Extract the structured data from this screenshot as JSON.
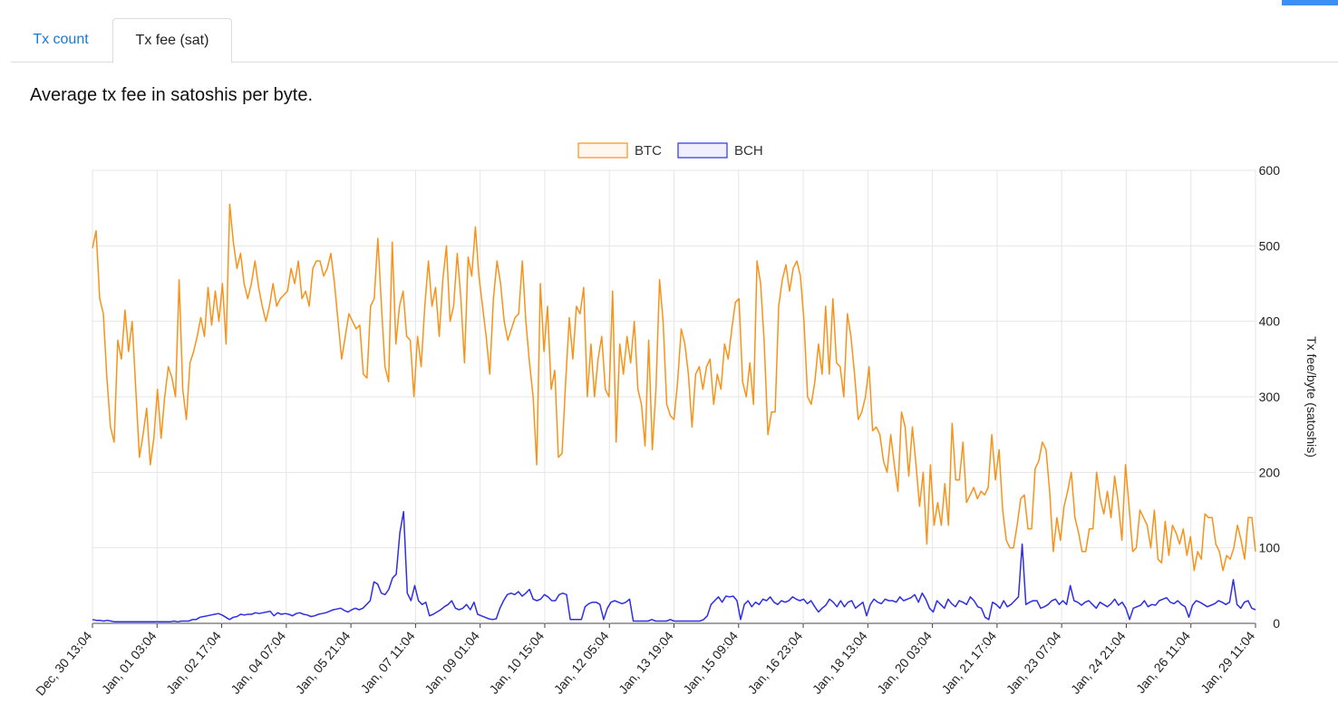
{
  "tabs": [
    {
      "label": "Tx count",
      "active": false
    },
    {
      "label": "Tx fee (sat)",
      "active": true
    }
  ],
  "description": "Average tx fee in satoshis per byte.",
  "colors": {
    "btc": "#f7931a",
    "bch": "#2e2ee6",
    "tab_link": "#1a78d8",
    "grid": "#e6e6e6"
  },
  "chart_data": {
    "type": "line",
    "title": "",
    "xlabel": "",
    "ylabel": "Tx fee/byte (satoshis)",
    "ylim": [
      0,
      600
    ],
    "yticks": [
      0,
      100,
      200,
      300,
      400,
      500,
      600
    ],
    "legend_position": "top-center",
    "x_start": "Dec, 30 13:04",
    "x_end": "Jan, 29 11:04",
    "x_tick_labels": [
      "Dec, 30 13:04",
      "Jan, 01 03:04",
      "Jan, 02 17:04",
      "Jan, 04 07:04",
      "Jan, 05 21:04",
      "Jan, 07 11:04",
      "Jan, 09 01:04",
      "Jan, 10 15:04",
      "Jan, 12 05:04",
      "Jan, 13 19:04",
      "Jan, 15 09:04",
      "Jan, 16 23:04",
      "Jan, 18 13:04",
      "Jan, 20 03:04",
      "Jan, 21 17:04",
      "Jan, 23 07:04",
      "Jan, 24 21:04",
      "Jan, 26 11:04",
      "Jan, 29 11:04"
    ],
    "series": [
      {
        "name": "BTC",
        "color": "#f7931a",
        "values": [
          497,
          520,
          430,
          410,
          325,
          260,
          240,
          375,
          350,
          415,
          360,
          400,
          310,
          220,
          250,
          285,
          210,
          245,
          310,
          245,
          300,
          340,
          325,
          300,
          455,
          310,
          270,
          345,
          360,
          380,
          405,
          380,
          445,
          395,
          440,
          400,
          450,
          370,
          555,
          505,
          470,
          490,
          450,
          430,
          450,
          480,
          445,
          420,
          400,
          420,
          450,
          420,
          430,
          435,
          440,
          470,
          450,
          480,
          430,
          440,
          420,
          470,
          480,
          480,
          460,
          470,
          490,
          450,
          400,
          350,
          380,
          410,
          400,
          390,
          395,
          330,
          325,
          420,
          430,
          510,
          420,
          340,
          320,
          505,
          370,
          420,
          440,
          380,
          375,
          300,
          380,
          340,
          420,
          480,
          420,
          445,
          380,
          455,
          500,
          400,
          420,
          490,
          430,
          345,
          485,
          460,
          525,
          460,
          420,
          380,
          330,
          430,
          480,
          450,
          400,
          375,
          390,
          405,
          410,
          480,
          400,
          345,
          300,
          210,
          450,
          360,
          420,
          310,
          335,
          220,
          225,
          320,
          405,
          350,
          420,
          410,
          445,
          300,
          370,
          300,
          350,
          380,
          310,
          300,
          440,
          240,
          370,
          330,
          380,
          345,
          400,
          310,
          290,
          235,
          375,
          230,
          310,
          455,
          400,
          290,
          275,
          270,
          320,
          390,
          370,
          330,
          260,
          330,
          340,
          310,
          340,
          350,
          290,
          330,
          310,
          370,
          350,
          390,
          425,
          430,
          320,
          300,
          345,
          290,
          480,
          450,
          370,
          250,
          280,
          280,
          420,
          455,
          475,
          440,
          470,
          480,
          460,
          400,
          300,
          290,
          320,
          370,
          330,
          420,
          330,
          430,
          345,
          340,
          300,
          410,
          380,
          330,
          270,
          280,
          300,
          340,
          255,
          260,
          250,
          215,
          200,
          250,
          210,
          175,
          280,
          260,
          195,
          260,
          210,
          155,
          200,
          105,
          210,
          130,
          160,
          130,
          185,
          130,
          265,
          190,
          190,
          240,
          160,
          170,
          180,
          165,
          175,
          170,
          180,
          250,
          190,
          230,
          150,
          110,
          100,
          100,
          130,
          165,
          170,
          125,
          125,
          205,
          215,
          240,
          230,
          175,
          95,
          140,
          110,
          155,
          175,
          200,
          140,
          120,
          95,
          95,
          125,
          125,
          200,
          165,
          145,
          175,
          140,
          195,
          160,
          110,
          210,
          155,
          95,
          100,
          150,
          140,
          130,
          100,
          150,
          85,
          80,
          135,
          90,
          130,
          120,
          105,
          125,
          90,
          115,
          70,
          95,
          85,
          145,
          140,
          140,
          105,
          95,
          70,
          90,
          85,
          100,
          130,
          110,
          85,
          140,
          140,
          95
        ]
      },
      {
        "name": "BCH",
        "color": "#2e2ee6",
        "values": [
          5,
          4,
          4,
          3,
          4,
          3,
          2,
          2,
          2,
          2,
          2,
          2,
          2,
          2,
          2,
          2,
          2,
          2,
          2,
          2,
          2,
          2,
          3,
          2,
          3,
          3,
          3,
          5,
          5,
          8,
          9,
          10,
          11,
          12,
          13,
          11,
          8,
          5,
          8,
          9,
          12,
          11,
          12,
          12,
          14,
          13,
          14,
          15,
          16,
          10,
          14,
          12,
          13,
          12,
          10,
          13,
          14,
          12,
          11,
          9,
          10,
          12,
          13,
          14,
          16,
          18,
          19,
          20,
          17,
          15,
          18,
          20,
          18,
          20,
          25,
          30,
          55,
          52,
          40,
          38,
          45,
          60,
          65,
          120,
          148,
          40,
          30,
          50,
          30,
          25,
          28,
          10,
          12,
          15,
          18,
          22,
          25,
          30,
          20,
          18,
          20,
          25,
          18,
          28,
          12,
          10,
          8,
          6,
          5,
          6,
          20,
          30,
          38,
          40,
          38,
          42,
          36,
          40,
          45,
          32,
          30,
          32,
          38,
          35,
          30,
          30,
          38,
          40,
          38,
          5,
          5,
          5,
          5,
          22,
          26,
          28,
          28,
          25,
          5,
          20,
          28,
          30,
          28,
          26,
          28,
          32,
          3,
          3,
          3,
          3,
          3,
          5,
          3,
          3,
          3,
          3,
          5,
          3,
          3,
          3,
          3,
          3,
          3,
          3,
          3,
          5,
          10,
          25,
          30,
          35,
          28,
          36,
          35,
          36,
          30,
          5,
          25,
          30,
          22,
          28,
          25,
          32,
          30,
          35,
          28,
          25,
          30,
          28,
          30,
          35,
          32,
          30,
          32,
          26,
          30,
          22,
          15,
          20,
          24,
          32,
          28,
          22,
          30,
          22,
          28,
          30,
          20,
          24,
          28,
          10,
          25,
          32,
          28,
          26,
          32,
          30,
          30,
          28,
          35,
          30,
          32,
          34,
          38,
          28,
          40,
          32,
          20,
          15,
          30,
          25,
          20,
          32,
          26,
          22,
          30,
          28,
          25,
          35,
          30,
          22,
          20,
          8,
          5,
          28,
          25,
          20,
          30,
          22,
          25,
          30,
          35,
          105,
          25,
          28,
          30,
          30,
          20,
          22,
          25,
          30,
          32,
          25,
          30,
          25,
          50,
          30,
          28,
          24,
          28,
          30,
          25,
          20,
          28,
          25,
          22,
          26,
          32,
          24,
          28,
          20,
          5,
          20,
          22,
          24,
          30,
          22,
          25,
          24,
          30,
          32,
          34,
          28,
          26,
          30,
          25,
          22,
          8,
          24,
          30,
          28,
          25,
          22,
          24,
          26,
          30,
          28,
          25,
          28,
          58,
          25,
          20,
          28,
          30,
          20,
          18
        ]
      }
    ]
  }
}
